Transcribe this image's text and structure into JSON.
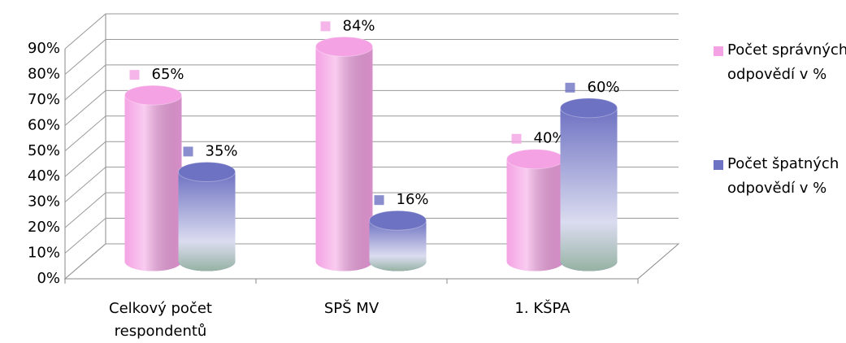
{
  "chart_data": {
    "type": "bar3d",
    "categories": [
      "Celkový počet respondentů",
      "SPŠ MV",
      "1. KŠPA"
    ],
    "series": [
      {
        "name": "Počet správných odpovědí v %",
        "color": "#f4a2e4",
        "values": [
          65,
          84,
          40
        ],
        "value_labels": [
          "65%",
          "84%",
          "40%"
        ]
      },
      {
        "name": "Počet špatných odpovědí v %",
        "color": "#6e72c2",
        "values": [
          35,
          16,
          60
        ],
        "value_labels": [
          "35%",
          "16%",
          "60%"
        ]
      }
    ],
    "ylim": [
      0,
      90
    ],
    "yticks": [
      {
        "value": 0,
        "label": "0%"
      },
      {
        "value": 10,
        "label": "10%"
      },
      {
        "value": 20,
        "label": "20%"
      },
      {
        "value": 30,
        "label": "30%"
      },
      {
        "value": 40,
        "label": "40%"
      },
      {
        "value": 50,
        "label": "50%"
      },
      {
        "value": 60,
        "label": "60%"
      },
      {
        "value": 70,
        "label": "70%"
      },
      {
        "value": 80,
        "label": "80%"
      },
      {
        "value": 90,
        "label": "90%"
      }
    ],
    "grid": true,
    "legend": "right"
  }
}
